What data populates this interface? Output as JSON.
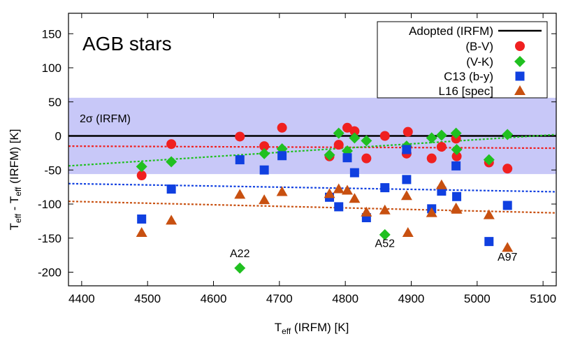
{
  "chart_data": {
    "type": "scatter",
    "title": "AGB stars",
    "xlabel": "T_eff (IRFM) [K]",
    "ylabel": "T_eff - T_eff (IRFM) [K]",
    "xlim": [
      4380,
      5120
    ],
    "ylim": [
      -220,
      180
    ],
    "xticks": [
      4400,
      4500,
      4600,
      4700,
      4800,
      4900,
      5000,
      5100
    ],
    "yticks": [
      150,
      100,
      50,
      0,
      -50,
      -100,
      -150,
      -200
    ],
    "band": {
      "label": "2σ (IRFM)",
      "range": [
        -56,
        56
      ],
      "color": "#c8c8f8"
    },
    "adopted_line": {
      "name": "Adopted (IRFM)",
      "y": 0,
      "color": "#000000"
    },
    "series": [
      {
        "name": "(B-V)",
        "marker": "circle",
        "color": "#f02020",
        "fit": {
          "x": [
            4380,
            5120
          ],
          "y": [
            -15,
            -18
          ]
        },
        "points": [
          [
            4491,
            -58
          ],
          [
            4536,
            -12
          ],
          [
            4640,
            -1
          ],
          [
            4677,
            -15
          ],
          [
            4704,
            12
          ],
          [
            4776,
            -30
          ],
          [
            4790,
            -13
          ],
          [
            4803,
            12
          ],
          [
            4814,
            7
          ],
          [
            4832,
            -33
          ],
          [
            4860,
            0
          ],
          [
            4893,
            -26
          ],
          [
            4895,
            6
          ],
          [
            4931,
            -33
          ],
          [
            4946,
            -16
          ],
          [
            4968,
            -4
          ],
          [
            4969,
            -30
          ],
          [
            5018,
            -39
          ],
          [
            5046,
            -48
          ]
        ]
      },
      {
        "name": "(V-K)",
        "marker": "diamond",
        "color": "#20c020",
        "fit": {
          "x": [
            4380,
            5120
          ],
          "y": [
            -44,
            2
          ]
        },
        "points": [
          [
            4491,
            -45
          ],
          [
            4536,
            -38
          ],
          [
            4640,
            -194
          ],
          [
            4677,
            -26
          ],
          [
            4704,
            -19
          ],
          [
            4776,
            -28
          ],
          [
            4790,
            4
          ],
          [
            4803,
            -22
          ],
          [
            4814,
            -3
          ],
          [
            4832,
            -7
          ],
          [
            4860,
            -145
          ],
          [
            4893,
            -15
          ],
          [
            4931,
            -3
          ],
          [
            4946,
            1
          ],
          [
            4968,
            4
          ],
          [
            4969,
            -20
          ],
          [
            5018,
            -35
          ],
          [
            5046,
            2
          ]
        ]
      },
      {
        "name": "C13 (b-y)",
        "marker": "square",
        "color": "#1040e0",
        "fit": {
          "x": [
            4380,
            5120
          ],
          "y": [
            -70,
            -82
          ]
        },
        "points": [
          [
            4491,
            -122
          ],
          [
            4536,
            -78
          ],
          [
            4640,
            -35
          ],
          [
            4677,
            -50
          ],
          [
            4704,
            -29
          ],
          [
            4776,
            -90
          ],
          [
            4790,
            -104
          ],
          [
            4803,
            -32
          ],
          [
            4814,
            -54
          ],
          [
            4832,
            -120
          ],
          [
            4860,
            -76
          ],
          [
            4893,
            -64
          ],
          [
            4893,
            -20
          ],
          [
            4931,
            -107
          ],
          [
            4946,
            -81
          ],
          [
            4968,
            -44
          ],
          [
            4969,
            -89
          ],
          [
            5018,
            -155
          ],
          [
            5046,
            -102
          ]
        ]
      },
      {
        "name": "L16 [spec]",
        "marker": "triangle",
        "color": "#c85010",
        "fit": {
          "x": [
            4380,
            5120
          ],
          "y": [
            -96,
            -113
          ]
        },
        "points": [
          [
            4491,
            -142
          ],
          [
            4536,
            -124
          ],
          [
            4640,
            -86
          ],
          [
            4677,
            -94
          ],
          [
            4704,
            -82
          ],
          [
            4776,
            -85
          ],
          [
            4790,
            -78
          ],
          [
            4803,
            -80
          ],
          [
            4814,
            -92
          ],
          [
            4832,
            -112
          ],
          [
            4860,
            -109
          ],
          [
            4893,
            -88
          ],
          [
            4895,
            -142
          ],
          [
            4931,
            -113
          ],
          [
            4946,
            -72
          ],
          [
            4968,
            -106
          ],
          [
            4969,
            -108
          ],
          [
            5018,
            -116
          ],
          [
            5046,
            -164
          ]
        ]
      }
    ],
    "annotations": [
      {
        "text": "A22",
        "x": 4640,
        "y": -178
      },
      {
        "text": "A52",
        "x": 4860,
        "y": -163
      },
      {
        "text": "A97",
        "x": 5046,
        "y": -183
      }
    ],
    "legend_position": "top-right",
    "grid": false
  }
}
